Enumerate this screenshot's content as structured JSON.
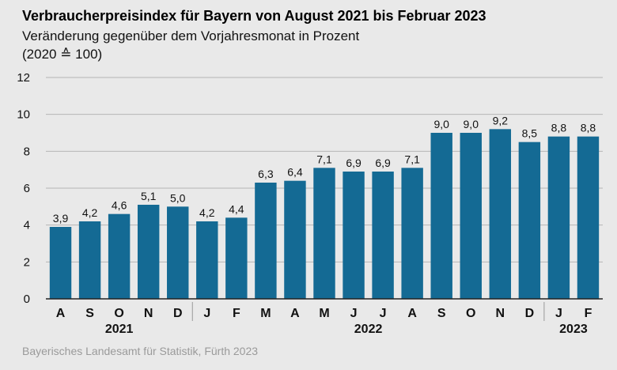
{
  "header": {
    "title": "Verbraucherpreisindex für Bayern von August 2021 bis Februar 2023",
    "subtitle": "Veränderung gegenüber dem Vorjahresmonat in Prozent",
    "subtitle2": "(2020 ≙ 100)"
  },
  "footer": {
    "source": "Bayerisches Landesamt für Statistik, Fürth 2023"
  },
  "colors": {
    "bar": "#146a94",
    "background": "#e9e9e9",
    "grid": "#b5b5b5"
  },
  "chart_data": {
    "type": "bar",
    "categories": [
      "A",
      "S",
      "O",
      "N",
      "D",
      "J",
      "F",
      "M",
      "A",
      "M",
      "J",
      "J",
      "A",
      "S",
      "O",
      "N",
      "D",
      "J",
      "F"
    ],
    "values": [
      3.9,
      4.2,
      4.6,
      5.1,
      5.0,
      4.2,
      4.4,
      6.3,
      6.4,
      7.1,
      6.9,
      6.9,
      7.1,
      9.0,
      9.0,
      9.2,
      8.5,
      8.8,
      8.8
    ],
    "value_labels": [
      "3,9",
      "4,2",
      "4,6",
      "5,1",
      "5,0",
      "4,2",
      "4,4",
      "6,3",
      "6,4",
      "7,1",
      "6,9",
      "6,9",
      "7,1",
      "9,0",
      "9,0",
      "9,2",
      "8,5",
      "8,8",
      "8,8"
    ],
    "years": [
      {
        "label": "2021",
        "start": 0,
        "end": 4
      },
      {
        "label": "2022",
        "start": 5,
        "end": 16
      },
      {
        "label": "2023",
        "start": 17,
        "end": 18
      }
    ],
    "ylim": [
      0,
      12
    ],
    "yticks": [
      0,
      2,
      4,
      6,
      8,
      10,
      12
    ],
    "grid": true
  }
}
